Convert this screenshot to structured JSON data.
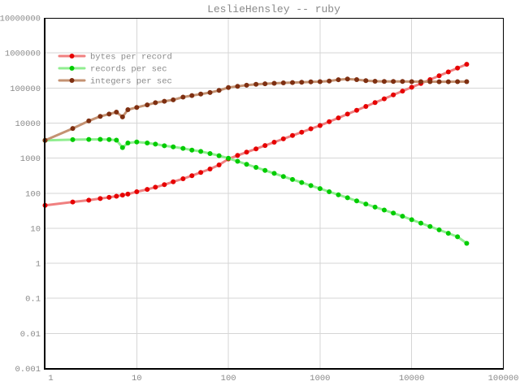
{
  "title": "LeslieHensley -- ruby",
  "style": {
    "background": "#ffffff",
    "grid_color": "#d6d6d6",
    "axis_color": "#000000",
    "text_color": "#8a8a8a"
  },
  "chart_data": {
    "type": "line",
    "title": "LeslieHensley -- ruby",
    "x_scale": "log",
    "y_scale": "log",
    "xlim": [
      1,
      100000
    ],
    "ylim": [
      0.001,
      10000000
    ],
    "grid": true,
    "legend_position": "top-left",
    "marker": "circle",
    "x_ticks": [
      {
        "value": 1,
        "label": "1"
      },
      {
        "value": 10,
        "label": "10"
      },
      {
        "value": 100,
        "label": "100"
      },
      {
        "value": 1000,
        "label": "1000"
      },
      {
        "value": 10000,
        "label": "10000"
      },
      {
        "value": 100000,
        "label": "100000"
      }
    ],
    "y_ticks": [
      {
        "value": 0.001,
        "label": "0.001"
      },
      {
        "value": 0.01,
        "label": "0.01"
      },
      {
        "value": 0.1,
        "label": "0.1"
      },
      {
        "value": 1,
        "label": "1"
      },
      {
        "value": 10,
        "label": "10"
      },
      {
        "value": 100,
        "label": "100"
      },
      {
        "value": 1000,
        "label": "1000"
      },
      {
        "value": 10000,
        "label": "10000"
      },
      {
        "value": 100000,
        "label": "100000"
      },
      {
        "value": 1000000,
        "label": "1000000"
      },
      {
        "value": 10000000,
        "label": "10000000"
      }
    ],
    "x": [
      1,
      2,
      3,
      4,
      5,
      6,
      7,
      8,
      10,
      13,
      16,
      20,
      25,
      32,
      40,
      50,
      63,
      79,
      100,
      126,
      158,
      200,
      251,
      316,
      398,
      501,
      631,
      794,
      1000,
      1259,
      1585,
      1995,
      2512,
      3162,
      3981,
      5012,
      6310,
      7943,
      10000,
      12589,
      15849,
      19953,
      25119,
      31623,
      39811
    ],
    "series": [
      {
        "name": "bytes per record",
        "line_color": "#f08080",
        "marker_color": "#e60000",
        "values": [
          45,
          56,
          63,
          70,
          76,
          82,
          88,
          94,
          110,
          128,
          148,
          175,
          212,
          258,
          315,
          390,
          490,
          640,
          950,
          1190,
          1480,
          1840,
          2290,
          2850,
          3550,
          4420,
          5500,
          6850,
          8500,
          10900,
          14000,
          18000,
          23200,
          29800,
          38300,
          49300,
          63400,
          81500,
          105000,
          135000,
          173000,
          223000,
          287000,
          369000,
          474000
        ]
      },
      {
        "name": "records per sec",
        "line_color": "#90ee90",
        "marker_color": "#00cc00",
        "values": [
          3200,
          3350,
          3420,
          3430,
          3380,
          3250,
          2000,
          2700,
          2880,
          2700,
          2500,
          2250,
          2100,
          1900,
          1700,
          1550,
          1350,
          1175,
          990,
          810,
          665,
          545,
          447,
          366,
          300,
          246,
          202,
          165,
          135,
          110,
          90,
          74,
          60,
          49,
          40,
          33,
          27,
          22,
          17.5,
          14,
          11.2,
          9,
          7.2,
          5.7,
          3.7
        ]
      },
      {
        "name": "integers per sec",
        "line_color": "#c49272",
        "marker_color": "#7e2f11",
        "values": [
          3200,
          7000,
          11500,
          15500,
          18000,
          20500,
          15000,
          24000,
          28000,
          33000,
          38000,
          42000,
          46000,
          55000,
          61000,
          67000,
          74000,
          85000,
          103000,
          112000,
          120000,
          127000,
          132000,
          136000,
          140000,
          143000,
          146000,
          149000,
          152000,
          158000,
          172000,
          180000,
          173000,
          162000,
          156000,
          154000,
          154000,
          153000,
          152000,
          152000,
          152000,
          151000,
          151000,
          152000,
          152000
        ]
      }
    ]
  }
}
